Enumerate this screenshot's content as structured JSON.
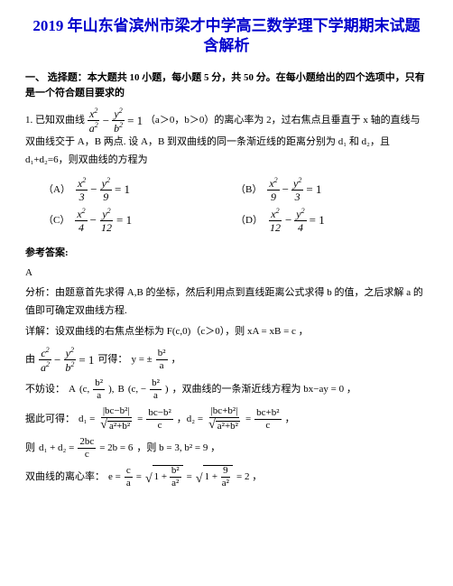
{
  "title": "2019 年山东省滨州市梁才中学高三数学理下学期期末试题含解析",
  "section_header": "一、 选择题：本大题共 10 小题，每小题 5 分，共 50 分。在每小题给出的四个选项中，只有是一个符合题目要求的",
  "question_prefix": "1. 已知双曲线",
  "question_cond": "（a＞0，b＞0）的离心率为 2，过右焦点且垂直于 x 轴的直线与双曲线交于 A，B 两点. 设 A，B 到双曲线的同一条渐近线的距离分别为 d₁ 和 d₂，且 d₁+d₂=6，则双曲线的方程为",
  "options": {
    "A": {
      "num1": "x",
      "den1": "3",
      "num2": "y",
      "den2": "9"
    },
    "B": {
      "num1": "x",
      "den1": "9",
      "num2": "y",
      "den2": "3"
    },
    "C": {
      "num1": "x",
      "den1": "4",
      "num2": "y",
      "den2": "12"
    },
    "D": {
      "num1": "x",
      "den1": "12",
      "num2": "y",
      "den2": "4"
    }
  },
  "answer_label": "参考答案:",
  "answer_letter": "A",
  "analysis_prefix": "分析：由题意首先求得 A,B 的坐标，然后利用点到直线距离公式求得 b 的值，之后求解 a 的值即可确定双曲线方程.",
  "detail_prefix": "详解：设双曲线的右焦点坐标为 F(c,0)（c＞0），则 xA = xB = c ，",
  "line_you": "由",
  "line_kede": "可得：",
  "line_y_eq": "y = ±",
  "frac_b2a": {
    "n": "b²",
    "d": "a"
  },
  "bufang": "不妨设：",
  "point_A": "A",
  "point_B": "B",
  "jianjin": "，双曲线的一条渐近线方程为 bx−ay = 0 ，",
  "jucikede": "据此可得：",
  "d1_label": "d₁ =",
  "d2_label": "，d₂ =",
  "ze": "则",
  "d1d2_sum": "d₁ + d₂ =",
  "eq_2b6": "= 2b = 6",
  "ze_b": "，则 b = 3, b² = 9 ，",
  "lixin": "双曲线的离心率：",
  "e_eq": "e ="
}
